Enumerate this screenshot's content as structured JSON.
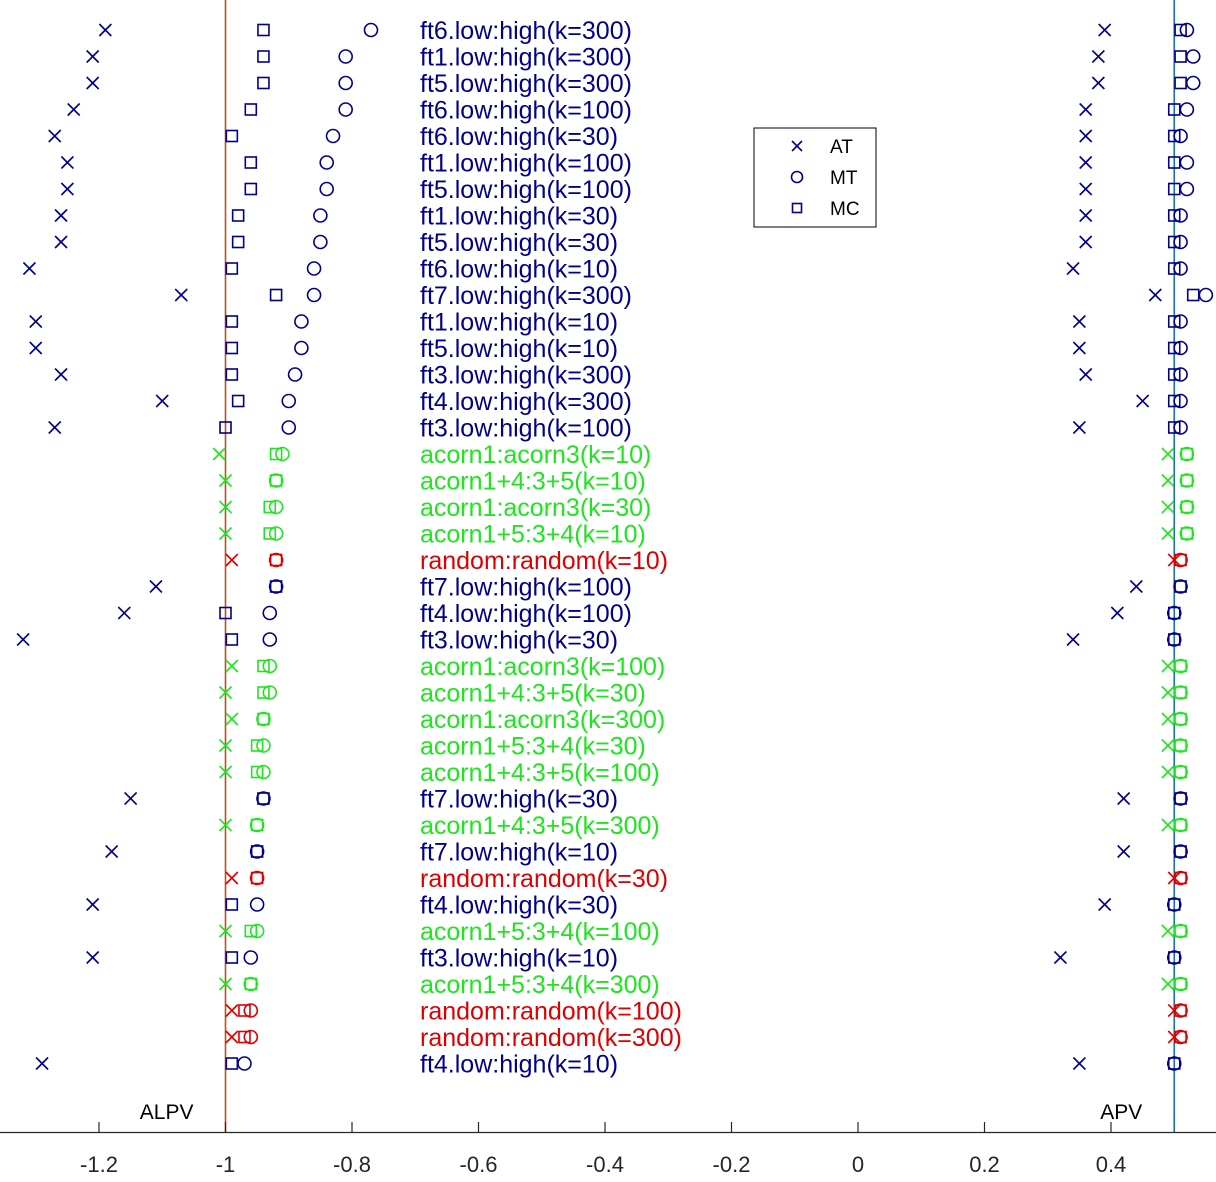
{
  "chart_data": {
    "type": "scatter",
    "xlim": [
      -1.35,
      0.56
    ],
    "xticks": [
      -1.2,
      -1,
      -0.8,
      -0.6,
      -0.4,
      -0.2,
      0,
      0.2,
      0.4
    ],
    "xtick_labels": [
      "-1.2",
      "-1",
      "-0.8",
      "-0.6",
      "-0.4",
      "-0.2",
      "0",
      "0.2",
      "0.4"
    ],
    "grid": false,
    "legend_position": "upper-right",
    "markers": {
      "AT": "x",
      "MT": "circle",
      "MC": "square"
    },
    "group_colors": {
      "ft": "#00008b",
      "acorn": "#1ee61e",
      "random": "#dc0000"
    },
    "reference_lines": [
      {
        "label": "ALPV",
        "x": -1.0,
        "color": "#c05018"
      },
      {
        "label": "APV",
        "x": 0.5,
        "color": "#1a6fb0"
      }
    ],
    "legend": [
      {
        "name": "AT",
        "marker": "x"
      },
      {
        "name": "MT",
        "marker": "circle"
      },
      {
        "name": "MC",
        "marker": "square"
      }
    ],
    "rows": [
      {
        "label": "ft6.low:high(k=300)",
        "group": "ft",
        "alpv": {
          "AT": -1.19,
          "MT": -0.77,
          "MC": -0.94
        },
        "apv": {
          "AT": 0.39,
          "MT": 0.52,
          "MC": 0.51
        }
      },
      {
        "label": "ft1.low:high(k=300)",
        "group": "ft",
        "alpv": {
          "AT": -1.21,
          "MT": -0.81,
          "MC": -0.94
        },
        "apv": {
          "AT": 0.38,
          "MT": 0.53,
          "MC": 0.51
        }
      },
      {
        "label": "ft5.low:high(k=300)",
        "group": "ft",
        "alpv": {
          "AT": -1.21,
          "MT": -0.81,
          "MC": -0.94
        },
        "apv": {
          "AT": 0.38,
          "MT": 0.53,
          "MC": 0.51
        }
      },
      {
        "label": "ft6.low:high(k=100)",
        "group": "ft",
        "alpv": {
          "AT": -1.24,
          "MT": -0.81,
          "MC": -0.96
        },
        "apv": {
          "AT": 0.36,
          "MT": 0.52,
          "MC": 0.5
        }
      },
      {
        "label": "ft6.low:high(k=30)",
        "group": "ft",
        "alpv": {
          "AT": -1.27,
          "MT": -0.83,
          "MC": -0.99
        },
        "apv": {
          "AT": 0.36,
          "MT": 0.51,
          "MC": 0.5
        }
      },
      {
        "label": "ft1.low:high(k=100)",
        "group": "ft",
        "alpv": {
          "AT": -1.25,
          "MT": -0.84,
          "MC": -0.96
        },
        "apv": {
          "AT": 0.36,
          "MT": 0.52,
          "MC": 0.5
        }
      },
      {
        "label": "ft5.low:high(k=100)",
        "group": "ft",
        "alpv": {
          "AT": -1.25,
          "MT": -0.84,
          "MC": -0.96
        },
        "apv": {
          "AT": 0.36,
          "MT": 0.52,
          "MC": 0.5
        }
      },
      {
        "label": "ft1.low:high(k=30)",
        "group": "ft",
        "alpv": {
          "AT": -1.26,
          "MT": -0.85,
          "MC": -0.98
        },
        "apv": {
          "AT": 0.36,
          "MT": 0.51,
          "MC": 0.5
        }
      },
      {
        "label": "ft5.low:high(k=30)",
        "group": "ft",
        "alpv": {
          "AT": -1.26,
          "MT": -0.85,
          "MC": -0.98
        },
        "apv": {
          "AT": 0.36,
          "MT": 0.51,
          "MC": 0.5
        }
      },
      {
        "label": "ft6.low:high(k=10)",
        "group": "ft",
        "alpv": {
          "AT": -1.31,
          "MT": -0.86,
          "MC": -0.99
        },
        "apv": {
          "AT": 0.34,
          "MT": 0.51,
          "MC": 0.5
        }
      },
      {
        "label": "ft7.low:high(k=300)",
        "group": "ft",
        "alpv": {
          "AT": -1.07,
          "MT": -0.86,
          "MC": -0.92
        },
        "apv": {
          "AT": 0.47,
          "MT": 0.55,
          "MC": 0.53
        }
      },
      {
        "label": "ft1.low:high(k=10)",
        "group": "ft",
        "alpv": {
          "AT": -1.3,
          "MT": -0.88,
          "MC": -0.99
        },
        "apv": {
          "AT": 0.35,
          "MT": 0.51,
          "MC": 0.5
        }
      },
      {
        "label": "ft5.low:high(k=10)",
        "group": "ft",
        "alpv": {
          "AT": -1.3,
          "MT": -0.88,
          "MC": -0.99
        },
        "apv": {
          "AT": 0.35,
          "MT": 0.51,
          "MC": 0.5
        }
      },
      {
        "label": "ft3.low:high(k=300)",
        "group": "ft",
        "alpv": {
          "AT": -1.26,
          "MT": -0.89,
          "MC": -0.99
        },
        "apv": {
          "AT": 0.36,
          "MT": 0.51,
          "MC": 0.5
        }
      },
      {
        "label": "ft4.low:high(k=300)",
        "group": "ft",
        "alpv": {
          "AT": -1.1,
          "MT": -0.9,
          "MC": -0.98
        },
        "apv": {
          "AT": 0.45,
          "MT": 0.51,
          "MC": 0.5
        }
      },
      {
        "label": "ft3.low:high(k=100)",
        "group": "ft",
        "alpv": {
          "AT": -1.27,
          "MT": -0.9,
          "MC": -1.0
        },
        "apv": {
          "AT": 0.35,
          "MT": 0.51,
          "MC": 0.5
        }
      },
      {
        "label": "acorn1:acorn3(k=10)",
        "group": "acorn",
        "alpv": {
          "AT": -1.01,
          "MT": -0.91,
          "MC": -0.92
        },
        "apv": {
          "AT": 0.49,
          "MT": 0.52,
          "MC": 0.52
        }
      },
      {
        "label": "acorn1+4:3+5(k=10)",
        "group": "acorn",
        "alpv": {
          "AT": -1.0,
          "MT": -0.92,
          "MC": -0.92
        },
        "apv": {
          "AT": 0.49,
          "MT": 0.52,
          "MC": 0.52
        }
      },
      {
        "label": "acorn1:acorn3(k=30)",
        "group": "acorn",
        "alpv": {
          "AT": -1.0,
          "MT": -0.92,
          "MC": -0.93
        },
        "apv": {
          "AT": 0.49,
          "MT": 0.52,
          "MC": 0.52
        }
      },
      {
        "label": "acorn1+5:3+4(k=10)",
        "group": "acorn",
        "alpv": {
          "AT": -1.0,
          "MT": -0.92,
          "MC": -0.93
        },
        "apv": {
          "AT": 0.49,
          "MT": 0.52,
          "MC": 0.52
        }
      },
      {
        "label": "random:random(k=10)",
        "group": "random",
        "alpv": {
          "AT": -0.99,
          "MT": -0.92,
          "MC": -0.92
        },
        "apv": {
          "AT": 0.5,
          "MT": 0.51,
          "MC": 0.51
        }
      },
      {
        "label": "ft7.low:high(k=100)",
        "group": "ft",
        "alpv": {
          "AT": -1.11,
          "MT": -0.92,
          "MC": -0.92
        },
        "apv": {
          "AT": 0.44,
          "MT": 0.51,
          "MC": 0.51
        }
      },
      {
        "label": "ft4.low:high(k=100)",
        "group": "ft",
        "alpv": {
          "AT": -1.16,
          "MT": -0.93,
          "MC": -1.0
        },
        "apv": {
          "AT": 0.41,
          "MT": 0.5,
          "MC": 0.5
        }
      },
      {
        "label": "ft3.low:high(k=30)",
        "group": "ft",
        "alpv": {
          "AT": -1.32,
          "MT": -0.93,
          "MC": -0.99
        },
        "apv": {
          "AT": 0.34,
          "MT": 0.5,
          "MC": 0.5
        }
      },
      {
        "label": "acorn1:acorn3(k=100)",
        "group": "acorn",
        "alpv": {
          "AT": -0.99,
          "MT": -0.93,
          "MC": -0.94
        },
        "apv": {
          "AT": 0.49,
          "MT": 0.51,
          "MC": 0.51
        }
      },
      {
        "label": "acorn1+4:3+5(k=30)",
        "group": "acorn",
        "alpv": {
          "AT": -1.0,
          "MT": -0.93,
          "MC": -0.94
        },
        "apv": {
          "AT": 0.49,
          "MT": 0.51,
          "MC": 0.51
        }
      },
      {
        "label": "acorn1:acorn3(k=300)",
        "group": "acorn",
        "alpv": {
          "AT": -0.99,
          "MT": -0.94,
          "MC": -0.94
        },
        "apv": {
          "AT": 0.49,
          "MT": 0.51,
          "MC": 0.51
        }
      },
      {
        "label": "acorn1+5:3+4(k=30)",
        "group": "acorn",
        "alpv": {
          "AT": -1.0,
          "MT": -0.94,
          "MC": -0.95
        },
        "apv": {
          "AT": 0.49,
          "MT": 0.51,
          "MC": 0.51
        }
      },
      {
        "label": "acorn1+4:3+5(k=100)",
        "group": "acorn",
        "alpv": {
          "AT": -1.0,
          "MT": -0.94,
          "MC": -0.95
        },
        "apv": {
          "AT": 0.49,
          "MT": 0.51,
          "MC": 0.51
        }
      },
      {
        "label": "ft7.low:high(k=30)",
        "group": "ft",
        "alpv": {
          "AT": -1.15,
          "MT": -0.94,
          "MC": -0.94
        },
        "apv": {
          "AT": 0.42,
          "MT": 0.51,
          "MC": 0.51
        }
      },
      {
        "label": "acorn1+4:3+5(k=300)",
        "group": "acorn",
        "alpv": {
          "AT": -1.0,
          "MT": -0.95,
          "MC": -0.95
        },
        "apv": {
          "AT": 0.49,
          "MT": 0.51,
          "MC": 0.51
        }
      },
      {
        "label": "ft7.low:high(k=10)",
        "group": "ft",
        "alpv": {
          "AT": -1.18,
          "MT": -0.95,
          "MC": -0.95
        },
        "apv": {
          "AT": 0.42,
          "MT": 0.51,
          "MC": 0.51
        }
      },
      {
        "label": "random:random(k=30)",
        "group": "random",
        "alpv": {
          "AT": -0.99,
          "MT": -0.95,
          "MC": -0.95
        },
        "apv": {
          "AT": 0.5,
          "MT": 0.51,
          "MC": 0.51
        }
      },
      {
        "label": "ft4.low:high(k=30)",
        "group": "ft",
        "alpv": {
          "AT": -1.21,
          "MT": -0.95,
          "MC": -0.99
        },
        "apv": {
          "AT": 0.39,
          "MT": 0.5,
          "MC": 0.5
        }
      },
      {
        "label": "acorn1+5:3+4(k=100)",
        "group": "acorn",
        "alpv": {
          "AT": -1.0,
          "MT": -0.95,
          "MC": -0.96
        },
        "apv": {
          "AT": 0.49,
          "MT": 0.51,
          "MC": 0.51
        }
      },
      {
        "label": "ft3.low:high(k=10)",
        "group": "ft",
        "alpv": {
          "AT": -1.21,
          "MT": -0.96,
          "MC": -0.99
        },
        "apv": {
          "AT": 0.32,
          "MT": 0.5,
          "MC": 0.5
        }
      },
      {
        "label": "acorn1+5:3+4(k=300)",
        "group": "acorn",
        "alpv": {
          "AT": -1.0,
          "MT": -0.96,
          "MC": -0.96
        },
        "apv": {
          "AT": 0.49,
          "MT": 0.51,
          "MC": 0.51
        }
      },
      {
        "label": "random:random(k=100)",
        "group": "random",
        "alpv": {
          "AT": -0.99,
          "MT": -0.96,
          "MC": -0.97
        },
        "apv": {
          "AT": 0.5,
          "MT": 0.51,
          "MC": 0.51
        }
      },
      {
        "label": "random:random(k=300)",
        "group": "random",
        "alpv": {
          "AT": -0.99,
          "MT": -0.96,
          "MC": -0.97
        },
        "apv": {
          "AT": 0.5,
          "MT": 0.51,
          "MC": 0.51
        }
      },
      {
        "label": "ft4.low:high(k=10)",
        "group": "ft",
        "alpv": {
          "AT": -1.29,
          "MT": -0.97,
          "MC": -0.99
        },
        "apv": {
          "AT": 0.35,
          "MT": 0.5,
          "MC": 0.5
        }
      }
    ]
  }
}
